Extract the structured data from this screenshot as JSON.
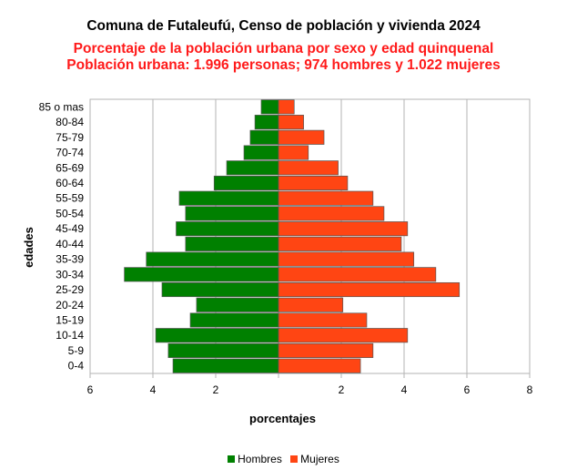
{
  "chart_data": {
    "type": "bar",
    "orientation": "horizontal",
    "subtype": "population-pyramid",
    "title": "Comuna de Futaleufú, Censo de población y vivienda 2024",
    "subtitle_lines": [
      "Porcentaje de la población urbana por sexo y edad quinquenal",
      "Población urbana: 1.996 personas; 974 hombres y 1.022 mujeres"
    ],
    "xlabel": "porcentajes",
    "ylabel": "edades",
    "categories": [
      "0-4",
      "5-9",
      "10-14",
      "15-19",
      "20-24",
      "25-29",
      "30-34",
      "35-39",
      "40-44",
      "45-49",
      "50-54",
      "55-59",
      "60-64",
      "65-69",
      "70-74",
      "75-79",
      "80-84",
      "85 o mas"
    ],
    "series": [
      {
        "name": "Hombres",
        "color": "#008000",
        "values": [
          3.36,
          3.51,
          3.91,
          2.81,
          2.61,
          3.71,
          4.91,
          4.21,
          2.96,
          3.26,
          2.96,
          3.16,
          2.05,
          1.65,
          1.1,
          0.9,
          0.75,
          0.55
        ]
      },
      {
        "name": "Mujeres",
        "color": "#ff4513",
        "values": [
          2.61,
          3.01,
          4.11,
          2.81,
          2.05,
          5.76,
          5.01,
          4.31,
          3.91,
          4.11,
          3.36,
          3.01,
          2.2,
          1.9,
          0.95,
          1.45,
          0.8,
          0.5
        ]
      }
    ],
    "xlim": [
      -6,
      8
    ],
    "xticks": [
      -6,
      -4,
      -2,
      0,
      2,
      4,
      6,
      8
    ],
    "xtick_labels": [
      "6",
      "4",
      "2",
      "",
      "2",
      "4",
      "6",
      "8"
    ],
    "grid": "vertical",
    "legend_position": "bottom"
  }
}
